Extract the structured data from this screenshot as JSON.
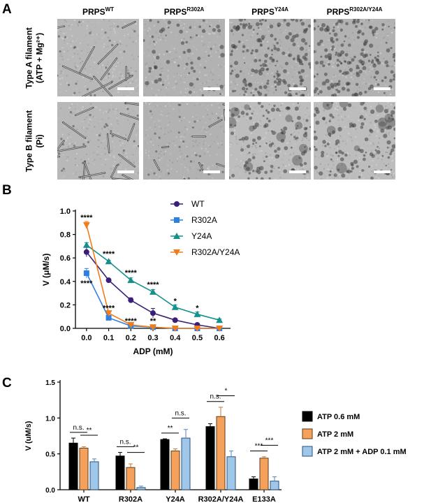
{
  "panel_a": {
    "letter": "A",
    "columns": [
      {
        "base": "PRPS",
        "sup": "WT"
      },
      {
        "base": "PRPS",
        "sup": "R302A"
      },
      {
        "base": "PRPS",
        "sup": "Y24A"
      },
      {
        "base": "PRPS",
        "sup": "R302A/Y24A"
      }
    ],
    "row_labels": [
      {
        "line1": "Type A filament",
        "line2": "(ATP + Mg²⁺)"
      },
      {
        "line1": "Type B filament",
        "line2": "(Pi)"
      }
    ],
    "image_styles": [
      [
        "filaments",
        "sparse",
        "dense",
        "dense"
      ],
      [
        "filaments",
        "short-filaments",
        "clumpy",
        "clumpy"
      ]
    ]
  },
  "chart_data": [
    {
      "type": "line",
      "panel": "B",
      "xlabel": "ADP (mM)",
      "ylabel": "V (μM/s)",
      "x": [
        0.0,
        0.1,
        0.2,
        0.3,
        0.4,
        0.5,
        0.6
      ],
      "x_ticks": [
        "0.0",
        "0.1",
        "0.2",
        "0.3",
        "0.4",
        "0.5",
        "0.6"
      ],
      "ylim": [
        0,
        1.0
      ],
      "y_ticks": [
        "0.0",
        "0.2",
        "0.4",
        "0.6",
        "0.8",
        "1.0"
      ],
      "legend_position": "top-right",
      "series": [
        {
          "name": "WT",
          "color": "#3b1e78",
          "marker": "circle",
          "values": [
            0.65,
            0.41,
            0.24,
            0.13,
            0.07,
            0.03,
            0.0
          ],
          "errors": [
            0.04,
            0.01,
            0.02,
            0.04,
            0.01,
            0.01,
            0.0
          ]
        },
        {
          "name": "R302A",
          "color": "#2f7fe0",
          "marker": "square",
          "values": [
            0.47,
            0.09,
            0.02,
            0.01,
            0.0,
            0.0,
            0.0
          ],
          "errors": [
            0.04,
            0.01,
            0.01,
            0.0,
            0.0,
            0.0,
            0.0
          ]
        },
        {
          "name": "Y24A",
          "color": "#16908c",
          "marker": "triangle-up",
          "values": [
            0.71,
            0.57,
            0.41,
            0.31,
            0.18,
            0.12,
            0.07
          ],
          "errors": [
            0.02,
            0.01,
            0.02,
            0.02,
            0.02,
            0.02,
            0.01
          ]
        },
        {
          "name": "R302A/Y24A",
          "color": "#f07d1b",
          "marker": "triangle-down",
          "values": [
            0.88,
            0.13,
            0.03,
            0.01,
            0.0,
            0.0,
            0.0
          ],
          "errors": [
            0.03,
            0.01,
            0.0,
            0.0,
            0.0,
            0.0,
            0.0
          ]
        }
      ],
      "annotations": [
        {
          "x": 0.0,
          "y": 0.94,
          "text": "****"
        },
        {
          "x": 0.0,
          "y": 0.38,
          "text": "****"
        },
        {
          "x": 0.1,
          "y": 0.63,
          "text": "****"
        },
        {
          "x": 0.1,
          "y": 0.17,
          "text": "****"
        },
        {
          "x": 0.2,
          "y": 0.47,
          "text": "****"
        },
        {
          "x": 0.2,
          "y": 0.06,
          "text": "****"
        },
        {
          "x": 0.3,
          "y": 0.37,
          "text": "****"
        },
        {
          "x": 0.3,
          "y": 0.06,
          "text": "**"
        },
        {
          "x": 0.4,
          "y": 0.23,
          "text": "*"
        },
        {
          "x": 0.5,
          "y": 0.17,
          "text": "*"
        }
      ]
    },
    {
      "type": "bar",
      "panel": "C",
      "ylabel": "V (uM/s)",
      "categories": [
        "WT",
        "R302A",
        "Y24A",
        "R302A/Y24A",
        "E133A"
      ],
      "ylim": [
        0,
        1.5
      ],
      "y_ticks": [
        "0.0",
        "0.5",
        "1.0",
        "1.5"
      ],
      "legend_position": "right",
      "series": [
        {
          "name": "ATP 0.6 mM",
          "color": "#000000",
          "values": [
            0.65,
            0.47,
            0.7,
            0.88,
            0.15
          ],
          "errors": [
            0.07,
            0.05,
            0.01,
            0.04,
            0.03
          ]
        },
        {
          "name": "ATP 2 mM",
          "color": "#f5a15c",
          "values": [
            0.58,
            0.31,
            0.54,
            1.02,
            0.44
          ],
          "errors": [
            0.02,
            0.05,
            0.03,
            0.13,
            0.02
          ]
        },
        {
          "name": "ATP 2 mM + ADP 0.1 mM",
          "color": "#9ec7ea",
          "values": [
            0.39,
            0.03,
            0.72,
            0.46,
            0.12
          ],
          "errors": [
            0.04,
            0.02,
            0.12,
            0.08,
            0.06
          ]
        }
      ],
      "significance": [
        {
          "category": 0,
          "pair": [
            0,
            1
          ],
          "text": "n.s."
        },
        {
          "category": 0,
          "pair": [
            1,
            2
          ],
          "text": "**"
        },
        {
          "category": 1,
          "pair": [
            0,
            1
          ],
          "text": "n.s."
        },
        {
          "category": 1,
          "pair": [
            1,
            2
          ],
          "text": "**"
        },
        {
          "category": 2,
          "pair": [
            0,
            1
          ],
          "text": "**"
        },
        {
          "category": 2,
          "pair": [
            1,
            2
          ],
          "text": "n.s."
        },
        {
          "category": 3,
          "pair": [
            0,
            1
          ],
          "text": "n.s."
        },
        {
          "category": 3,
          "pair": [
            1,
            2
          ],
          "text": "*"
        },
        {
          "category": 4,
          "pair": [
            0,
            1
          ],
          "text": "***"
        },
        {
          "category": 4,
          "pair": [
            1,
            2
          ],
          "text": "***"
        }
      ]
    }
  ]
}
